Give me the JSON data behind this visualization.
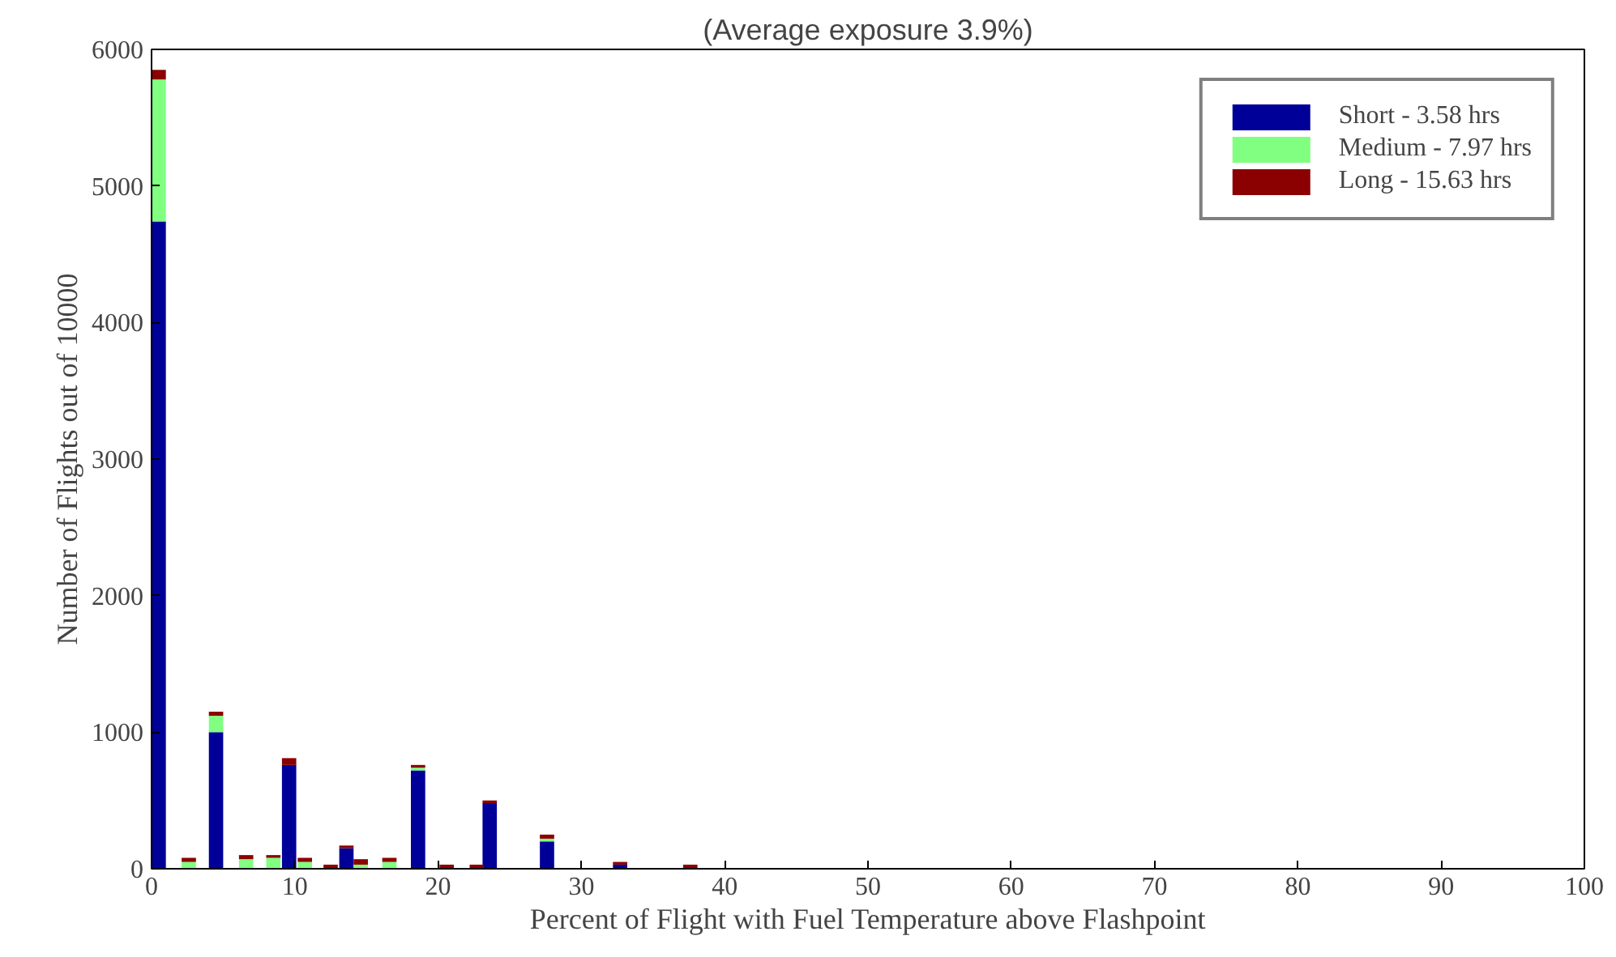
{
  "chart_data": {
    "type": "bar",
    "stacked": true,
    "title": "(Average exposure 3.9%)",
    "xlabel": "Percent of Flight with Fuel Temperature above Flashpoint",
    "ylabel": "Number of Flights out of 10000",
    "x": [
      0.5,
      2.6,
      4.5,
      6.6,
      8.5,
      9.6,
      10.7,
      12.5,
      13.6,
      14.6,
      16.6,
      18.6,
      20.6,
      22.7,
      23.6,
      27.6,
      32.7,
      37.6
    ],
    "series": [
      {
        "name": "Short - 3.58 hrs",
        "color": "#000099",
        "values": [
          4740,
          null,
          1000,
          null,
          null,
          760,
          null,
          null,
          150,
          null,
          null,
          720,
          null,
          null,
          480,
          200,
          30,
          null
        ]
      },
      {
        "name": "Medium - 7.97 hrs",
        "color": "#80ff80",
        "values": [
          1040,
          50,
          120,
          70,
          80,
          null,
          50,
          null,
          null,
          30,
          50,
          20,
          null,
          null,
          null,
          20,
          null,
          null
        ]
      },
      {
        "name": "Long - 15.63 hrs",
        "color": "#8b0000",
        "values": [
          70,
          30,
          30,
          30,
          20,
          50,
          30,
          30,
          20,
          40,
          30,
          20,
          30,
          30,
          20,
          30,
          20,
          30
        ]
      }
    ],
    "xlim": [
      0,
      100
    ],
    "xticks": [
      0,
      10,
      20,
      30,
      40,
      50,
      60,
      70,
      80,
      90,
      100
    ],
    "ylim": [
      0,
      6000
    ],
    "yticks": [
      0,
      1000,
      2000,
      3000,
      4000,
      5000,
      6000
    ],
    "legend": "top right"
  }
}
